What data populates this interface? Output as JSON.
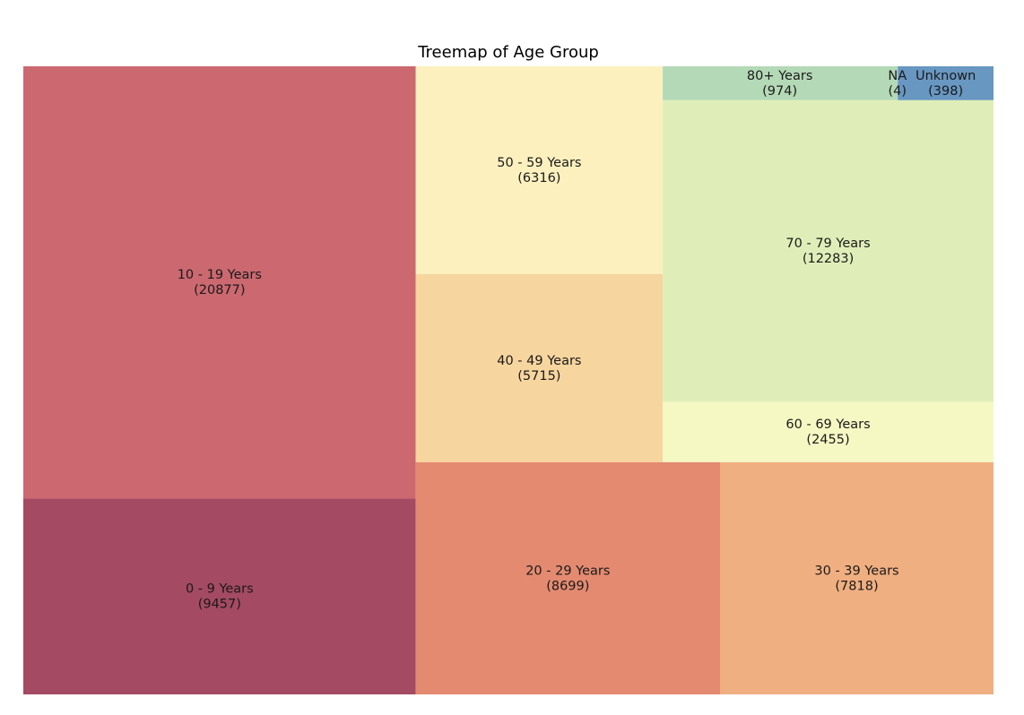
{
  "chart_data": {
    "type": "treemap",
    "title": "Treemap of Age Group",
    "items": [
      {
        "label": "0 - 9 Years",
        "value": 9457,
        "color": "#a44a63"
      },
      {
        "label": "10 - 19 Years",
        "value": 20877,
        "color": "#cb6870"
      },
      {
        "label": "20 - 29 Years",
        "value": 8699,
        "color": "#e48a70"
      },
      {
        "label": "30 - 39 Years",
        "value": 7818,
        "color": "#f0af80"
      },
      {
        "label": "40 - 49 Years",
        "value": 5715,
        "color": "#f7d59e"
      },
      {
        "label": "50 - 59 Years",
        "value": 6316,
        "color": "#fcf0be"
      },
      {
        "label": "60 - 69 Years",
        "value": 2455,
        "color": "#f6f8c3"
      },
      {
        "label": "70 - 79 Years",
        "value": 12283,
        "color": "#dfeeb8"
      },
      {
        "label": "80+ Years",
        "value": 974,
        "color": "#b4d9b6"
      },
      {
        "label": "NA",
        "value": 4,
        "color": "#a7cdc0"
      },
      {
        "label": "Unknown",
        "value": 398,
        "color": "#6897c2"
      }
    ]
  }
}
